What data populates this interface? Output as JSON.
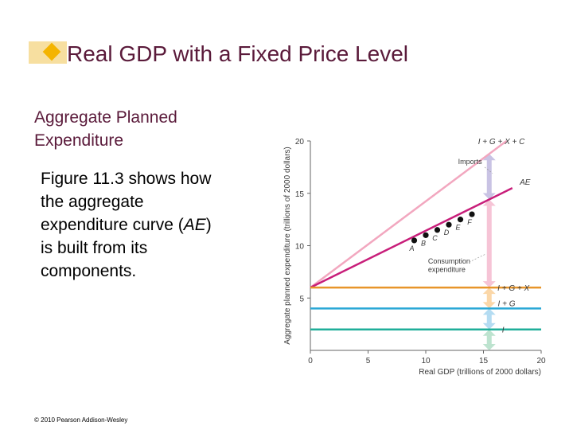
{
  "slide": {
    "title": "Real GDP with a Fixed Price Level",
    "subhead_line1": "Aggregate Planned",
    "subhead_line2": "Expenditure",
    "body_line1": "Figure 11.3 shows how",
    "body_line2": "the aggregate",
    "body_line3_pre": "expenditure curve (",
    "body_line3_em": "AE",
    "body_line3_post": ")",
    "body_line4": "is built from its",
    "body_line5": "components.",
    "copyright": "© 2010 Pearson Addison-Wesley"
  },
  "colors": {
    "title": "#5a1a3a",
    "ig_x_c": "#f2a7bf",
    "ae": "#c81e7a",
    "ig_x": "#e8952a",
    "ig": "#29a7d6",
    "i": "#1fae9a",
    "imports_arrow": "#c9c3e4",
    "consumption_arrow": "#f6c4d6",
    "net_exports_arrow": "#fbd7a8",
    "government_arrow": "#b4dcf2",
    "investment_arrow": "#bde3cf",
    "point": "#111111"
  },
  "chart_data": {
    "type": "line",
    "xlabel": "Real GDP (trillions of 2000 dollars)",
    "ylabel": "Aggregate planned expenditure (trillions of 2000 dollars)",
    "xlim": [
      0,
      20
    ],
    "ylim": [
      0,
      20
    ],
    "xticks": [
      0,
      5,
      10,
      15,
      20
    ],
    "yticks": [
      5,
      10,
      15,
      20
    ],
    "series": [
      {
        "name": "I + G + X + C",
        "x": [
          0,
          17
        ],
        "y": [
          6,
          20
        ]
      },
      {
        "name": "AE",
        "x": [
          0,
          17.5
        ],
        "y": [
          6,
          15.5
        ]
      },
      {
        "name": "I + G + X",
        "x": [
          0,
          20
        ],
        "y": [
          6,
          6
        ]
      },
      {
        "name": "I + G",
        "x": [
          0,
          20
        ],
        "y": [
          4,
          4
        ]
      },
      {
        "name": "I",
        "x": [
          0,
          20
        ],
        "y": [
          2,
          2
        ]
      }
    ],
    "points": [
      {
        "label": "A",
        "x": 9,
        "y": 10.5
      },
      {
        "label": "B",
        "x": 10,
        "y": 11
      },
      {
        "label": "C",
        "x": 11,
        "y": 11.5
      },
      {
        "label": "D",
        "x": 12,
        "y": 12
      },
      {
        "label": "E",
        "x": 13,
        "y": 12.5
      },
      {
        "label": "F",
        "x": 14,
        "y": 13
      }
    ],
    "annotations": [
      "Imports",
      "Consumption",
      "expenditure"
    ]
  }
}
